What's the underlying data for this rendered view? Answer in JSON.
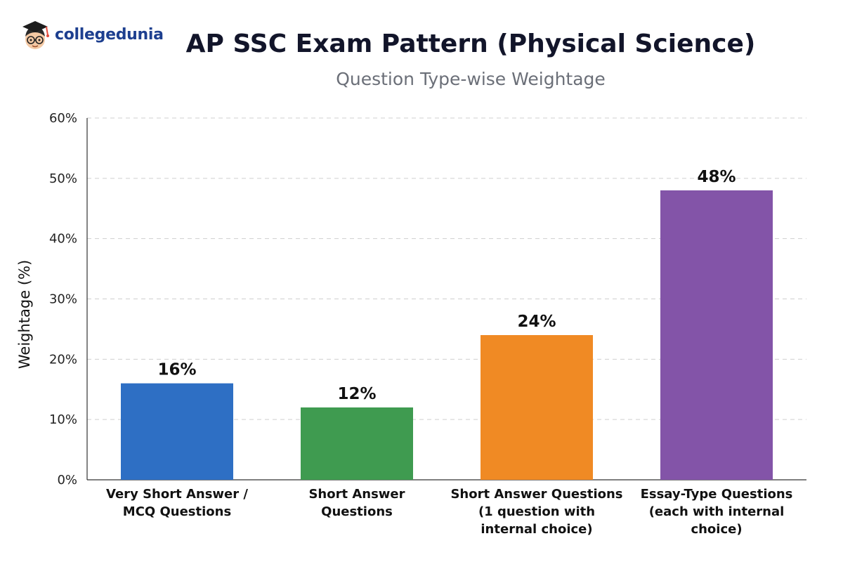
{
  "logo": {
    "text": "collegedunia",
    "icon": "graduate-mascot-icon"
  },
  "chart_data": {
    "type": "bar",
    "title": "AP SSC Exam Pattern (Physical Science)",
    "subtitle": "Question Type-wise Weightage",
    "ylabel": "Weightage (%)",
    "xlabel": "",
    "ylim": [
      0,
      60
    ],
    "yticks": [
      "0%",
      "10%",
      "20%",
      "30%",
      "40%",
      "50%",
      "60%"
    ],
    "grid": true,
    "categories": [
      [
        "Very Short Answer /",
        "MCQ Questions"
      ],
      [
        "Short Answer",
        "Questions"
      ],
      [
        "Short Answer Questions",
        "(1 question with",
        "internal choice)"
      ],
      [
        "Essay-Type Questions",
        "(each with internal",
        "choice)"
      ]
    ],
    "values": [
      16,
      12,
      24,
      48
    ],
    "value_labels": [
      "16%",
      "12%",
      "24%",
      "48%"
    ],
    "colors": [
      "#2e6fc4",
      "#3f9b50",
      "#f08a24",
      "#8354a8"
    ]
  }
}
